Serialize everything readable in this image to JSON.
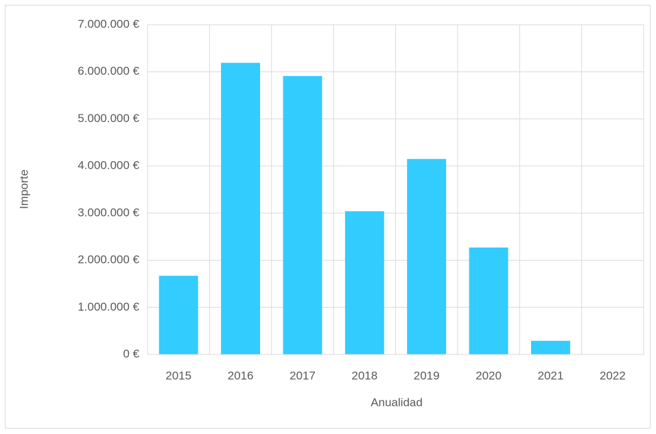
{
  "chart_data": {
    "type": "bar",
    "x_label": "Anualidad",
    "y_label": "Importe",
    "categories": [
      "2015",
      "2016",
      "2017",
      "2018",
      "2019",
      "2020",
      "2021",
      "2022"
    ],
    "values": [
      1670000,
      6190000,
      5910000,
      3040000,
      4150000,
      2270000,
      290000,
      0
    ],
    "color": "#33ccff",
    "ylim": [
      0,
      7000000
    ],
    "yticks": [
      {
        "value": 0,
        "label": "0 €"
      },
      {
        "value": 1000000,
        "label": "1.000.000 €"
      },
      {
        "value": 2000000,
        "label": "2.000.000 €"
      },
      {
        "value": 3000000,
        "label": "3.000.000 €"
      },
      {
        "value": 4000000,
        "label": "4.000.000 €"
      },
      {
        "value": 5000000,
        "label": "5.000.000 €"
      },
      {
        "value": 6000000,
        "label": "6.000.000 €"
      },
      {
        "value": 7000000,
        "label": "7.000.000 €"
      }
    ],
    "grid": true
  }
}
